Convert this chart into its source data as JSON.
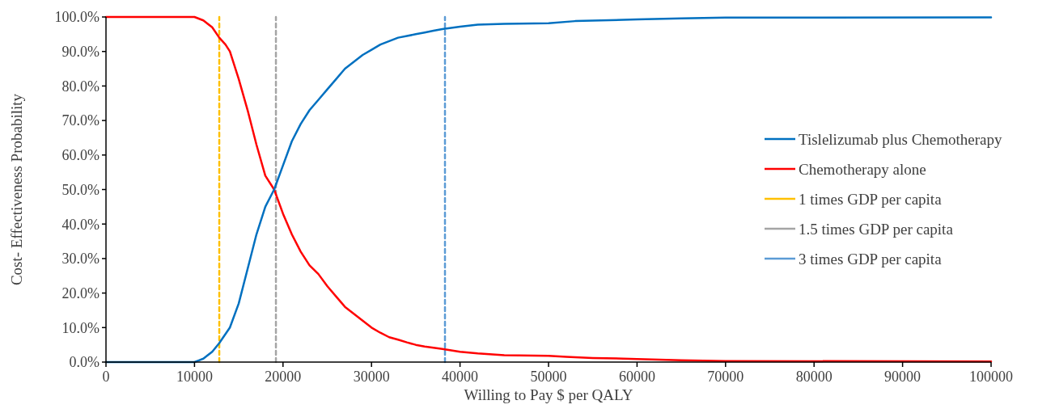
{
  "chart_data": {
    "type": "line",
    "xlabel": "Willing to Pay $ per QALY",
    "ylabel": "Cost- Effectiveness Probability",
    "xlim": [
      0,
      100000
    ],
    "xticks": [
      0,
      10000,
      20000,
      30000,
      40000,
      50000,
      60000,
      70000,
      80000,
      90000,
      100000
    ],
    "ylim": [
      0,
      100
    ],
    "yticks": [
      {
        "value": 0,
        "label": "0.0%"
      },
      {
        "value": 10,
        "label": "10.0%"
      },
      {
        "value": 20,
        "label": "20.0%"
      },
      {
        "value": 30,
        "label": "30.0%"
      },
      {
        "value": 40,
        "label": "40.0%"
      },
      {
        "value": 50,
        "label": "50.0%"
      },
      {
        "value": 60,
        "label": "60.0%"
      },
      {
        "value": 70,
        "label": "70.0%"
      },
      {
        "value": 80,
        "label": "80.0%"
      },
      {
        "value": 90,
        "label": "90.0%"
      },
      {
        "value": 100,
        "label": "100.0%"
      }
    ],
    "grid": false,
    "legend": "right",
    "marker": "none",
    "line_style": "solid",
    "series": [
      {
        "name": "Tislelizumab plus Chemotherapy",
        "color": "#0070c0",
        "x": [
          0,
          10000,
          10500,
          11000,
          12000,
          12800,
          14000,
          15000,
          16000,
          17000,
          18000,
          19000,
          20000,
          21000,
          22000,
          23000,
          24000,
          25000,
          26000,
          27000,
          28000,
          29000,
          30000,
          31000,
          32000,
          33000,
          34000,
          35000,
          36000,
          37000,
          38000,
          40000,
          42000,
          45000,
          50000,
          53000,
          60000,
          65000,
          70000,
          100000
        ],
        "values": [
          0,
          0,
          0.5,
          1,
          3,
          5.5,
          10,
          17,
          27,
          37,
          45,
          50,
          57,
          64,
          69,
          73,
          76,
          79,
          82,
          85,
          87,
          89,
          90.5,
          92,
          93,
          94,
          94.5,
          95,
          95.5,
          96,
          96.5,
          97.2,
          97.8,
          98,
          98.2,
          98.8,
          99.3,
          99.6,
          99.8,
          99.9
        ]
      },
      {
        "name": "Chemotherapy alone",
        "color": "#ff0000",
        "x": [
          0,
          10000,
          11000,
          12000,
          12800,
          13500,
          14000,
          15000,
          16000,
          17000,
          18000,
          19000,
          20000,
          21000,
          22000,
          23000,
          24000,
          25000,
          26000,
          27000,
          28000,
          29000,
          30000,
          31000,
          32000,
          33000,
          34000,
          35000,
          36000,
          38000,
          40000,
          42000,
          45000,
          50000,
          52000,
          55000,
          60000,
          65000,
          70000,
          100000
        ],
        "values": [
          100,
          100,
          99,
          97,
          94,
          92,
          90,
          82,
          73,
          63,
          54,
          50,
          43,
          37,
          32,
          28,
          25.5,
          22,
          19,
          16,
          14,
          12,
          10,
          8.5,
          7.2,
          6.5,
          5.7,
          5,
          4.5,
          3.8,
          3,
          2.5,
          2,
          1.8,
          1.5,
          1.2,
          0.9,
          0.5,
          0.3,
          0.2
        ]
      },
      {
        "name": "1 times GDP per capita",
        "color": "#ffc000",
        "line_style": "dashed",
        "x": [
          12800,
          12800
        ],
        "values": [
          0,
          100
        ]
      },
      {
        "name": "1.5 times GDP per capita",
        "color": "#a5a5a5",
        "line_style": "dashed",
        "x": [
          19200,
          19200
        ],
        "values": [
          0,
          100
        ]
      },
      {
        "name": "3 times GDP per capita",
        "color": "#5b9bd5",
        "line_style": "dashed",
        "x": [
          38300,
          38300
        ],
        "values": [
          0,
          100
        ]
      }
    ]
  }
}
